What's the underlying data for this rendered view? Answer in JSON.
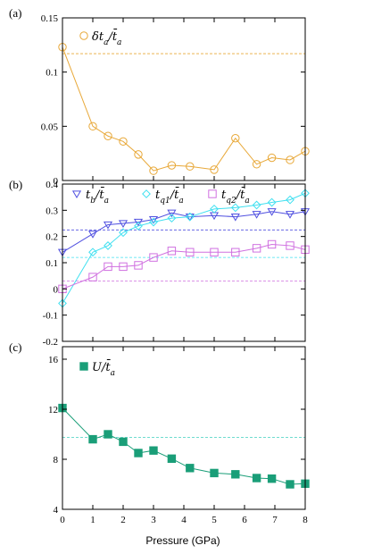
{
  "xlabel": "Pressure (GPa)",
  "chart_data": [
    {
      "type": "line",
      "panel_label": "(a)",
      "x": [
        0,
        1,
        1.5,
        2,
        2.5,
        3,
        3.6,
        4.2,
        5,
        5.7,
        6.4,
        6.9,
        7.5,
        8
      ],
      "xlim": [
        0,
        8
      ],
      "xticks": [
        0,
        1,
        2,
        3,
        4,
        5,
        6,
        7,
        8
      ],
      "ylim": [
        0,
        0.15
      ],
      "yticks": [
        0,
        0.05,
        0.1,
        0.15
      ],
      "ytick_labels": [
        "0",
        "0.05",
        "0.1",
        "0.15"
      ],
      "series": [
        {
          "name": "δt_a/t̄_a",
          "legend_parts": [
            "δt",
            "a",
            "/t̄",
            "a"
          ],
          "marker": "circle",
          "color": "#e8a838",
          "values": [
            0.123,
            0.05,
            0.041,
            0.036,
            0.024,
            0.009,
            0.014,
            0.013,
            0.01,
            0.039,
            0.015,
            0.021,
            0.019,
            0.027
          ]
        }
      ],
      "reference_lines": [
        {
          "y": 0.117,
          "color": "#e8a838"
        }
      ],
      "legend_placement": "top-left"
    },
    {
      "type": "line",
      "panel_label": "(b)",
      "x": [
        0,
        1,
        1.5,
        2,
        2.5,
        3,
        3.6,
        4.2,
        5,
        5.7,
        6.4,
        6.9,
        7.5,
        8
      ],
      "xlim": [
        0,
        8
      ],
      "xticks": [
        0,
        1,
        2,
        3,
        4,
        5,
        6,
        7,
        8
      ],
      "ylim": [
        -0.2,
        0.4
      ],
      "yticks": [
        -0.2,
        -0.1,
        0,
        0.1,
        0.2,
        0.3,
        0.4
      ],
      "ytick_labels": [
        "-0.2",
        "-0.1",
        "0",
        "0.1",
        "0.2",
        "0.3",
        "0.4"
      ],
      "series": [
        {
          "name": "t_b/t̄_a",
          "legend_parts": [
            "t",
            "b",
            "/t̄",
            "a"
          ],
          "marker": "triangle-down",
          "color": "#5050e0",
          "values": [
            0.14,
            0.21,
            0.245,
            0.25,
            0.255,
            0.265,
            0.29,
            0.275,
            0.28,
            0.275,
            0.285,
            0.295,
            0.285,
            0.295
          ]
        },
        {
          "name": "t_q1/t̄_a",
          "legend_parts": [
            "t",
            "q1",
            "/t̄",
            "a"
          ],
          "marker": "diamond",
          "color": "#40e0f0",
          "values": [
            -0.055,
            0.14,
            0.165,
            0.215,
            0.24,
            0.255,
            0.27,
            0.275,
            0.305,
            0.31,
            0.32,
            0.33,
            0.34,
            0.365
          ]
        },
        {
          "name": "t_q2/t̄_a",
          "legend_parts": [
            "t",
            "q2",
            "/t̄",
            "a"
          ],
          "marker": "square",
          "color": "#d070e0",
          "values": [
            0.0,
            0.045,
            0.085,
            0.085,
            0.09,
            0.12,
            0.145,
            0.14,
            0.14,
            0.14,
            0.155,
            0.17,
            0.165,
            0.15
          ]
        }
      ],
      "reference_lines": [
        {
          "y": 0.225,
          "color": "#5050e0"
        },
        {
          "y": 0.12,
          "color": "#40e0f0"
        },
        {
          "y": 0.03,
          "color": "#d070e0"
        }
      ],
      "legend_placement": "top"
    },
    {
      "type": "line",
      "panel_label": "(c)",
      "x": [
        0,
        1,
        1.5,
        2,
        2.5,
        3,
        3.6,
        4.2,
        5,
        5.7,
        6.4,
        6.9,
        7.5,
        8
      ],
      "xlim": [
        0,
        8
      ],
      "xticks": [
        0,
        1,
        2,
        3,
        4,
        5,
        6,
        7,
        8
      ],
      "xtick_labels": [
        "0",
        "1",
        "2",
        "3",
        "4",
        "5",
        "6",
        "7",
        "8"
      ],
      "ylim": [
        4,
        17
      ],
      "yticks": [
        4,
        8,
        12,
        16
      ],
      "ytick_labels": [
        "4",
        "8",
        "12",
        "16"
      ],
      "series": [
        {
          "name": "U/t̄_a",
          "legend_parts": [
            "U",
            "",
            "/t̄",
            "a"
          ],
          "marker": "filled-square",
          "color": "#1a9e78",
          "values": [
            12.1,
            9.6,
            10.0,
            9.4,
            8.5,
            8.7,
            8.05,
            7.3,
            6.9,
            6.8,
            6.5,
            6.45,
            6.0,
            6.05
          ]
        }
      ],
      "reference_lines": [
        {
          "y": 9.75,
          "color": "#40d0c0"
        }
      ],
      "legend_placement": "top-left"
    }
  ]
}
